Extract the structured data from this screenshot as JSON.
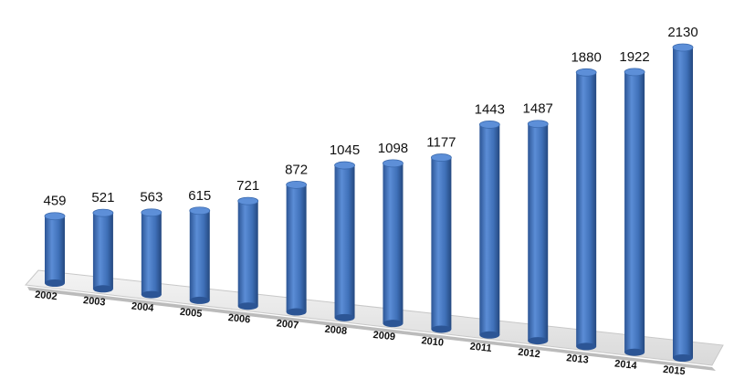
{
  "chart_data": {
    "type": "bar",
    "categories": [
      "2002",
      "2003",
      "2004",
      "2005",
      "2006",
      "2007",
      "2008",
      "2009",
      "2010",
      "2011",
      "2012",
      "2013",
      "2014",
      "2015"
    ],
    "values": [
      459,
      521,
      563,
      615,
      721,
      872,
      1045,
      1098,
      1177,
      1443,
      1487,
      1880,
      1922,
      2130
    ],
    "color": "#4a7cc4"
  }
}
